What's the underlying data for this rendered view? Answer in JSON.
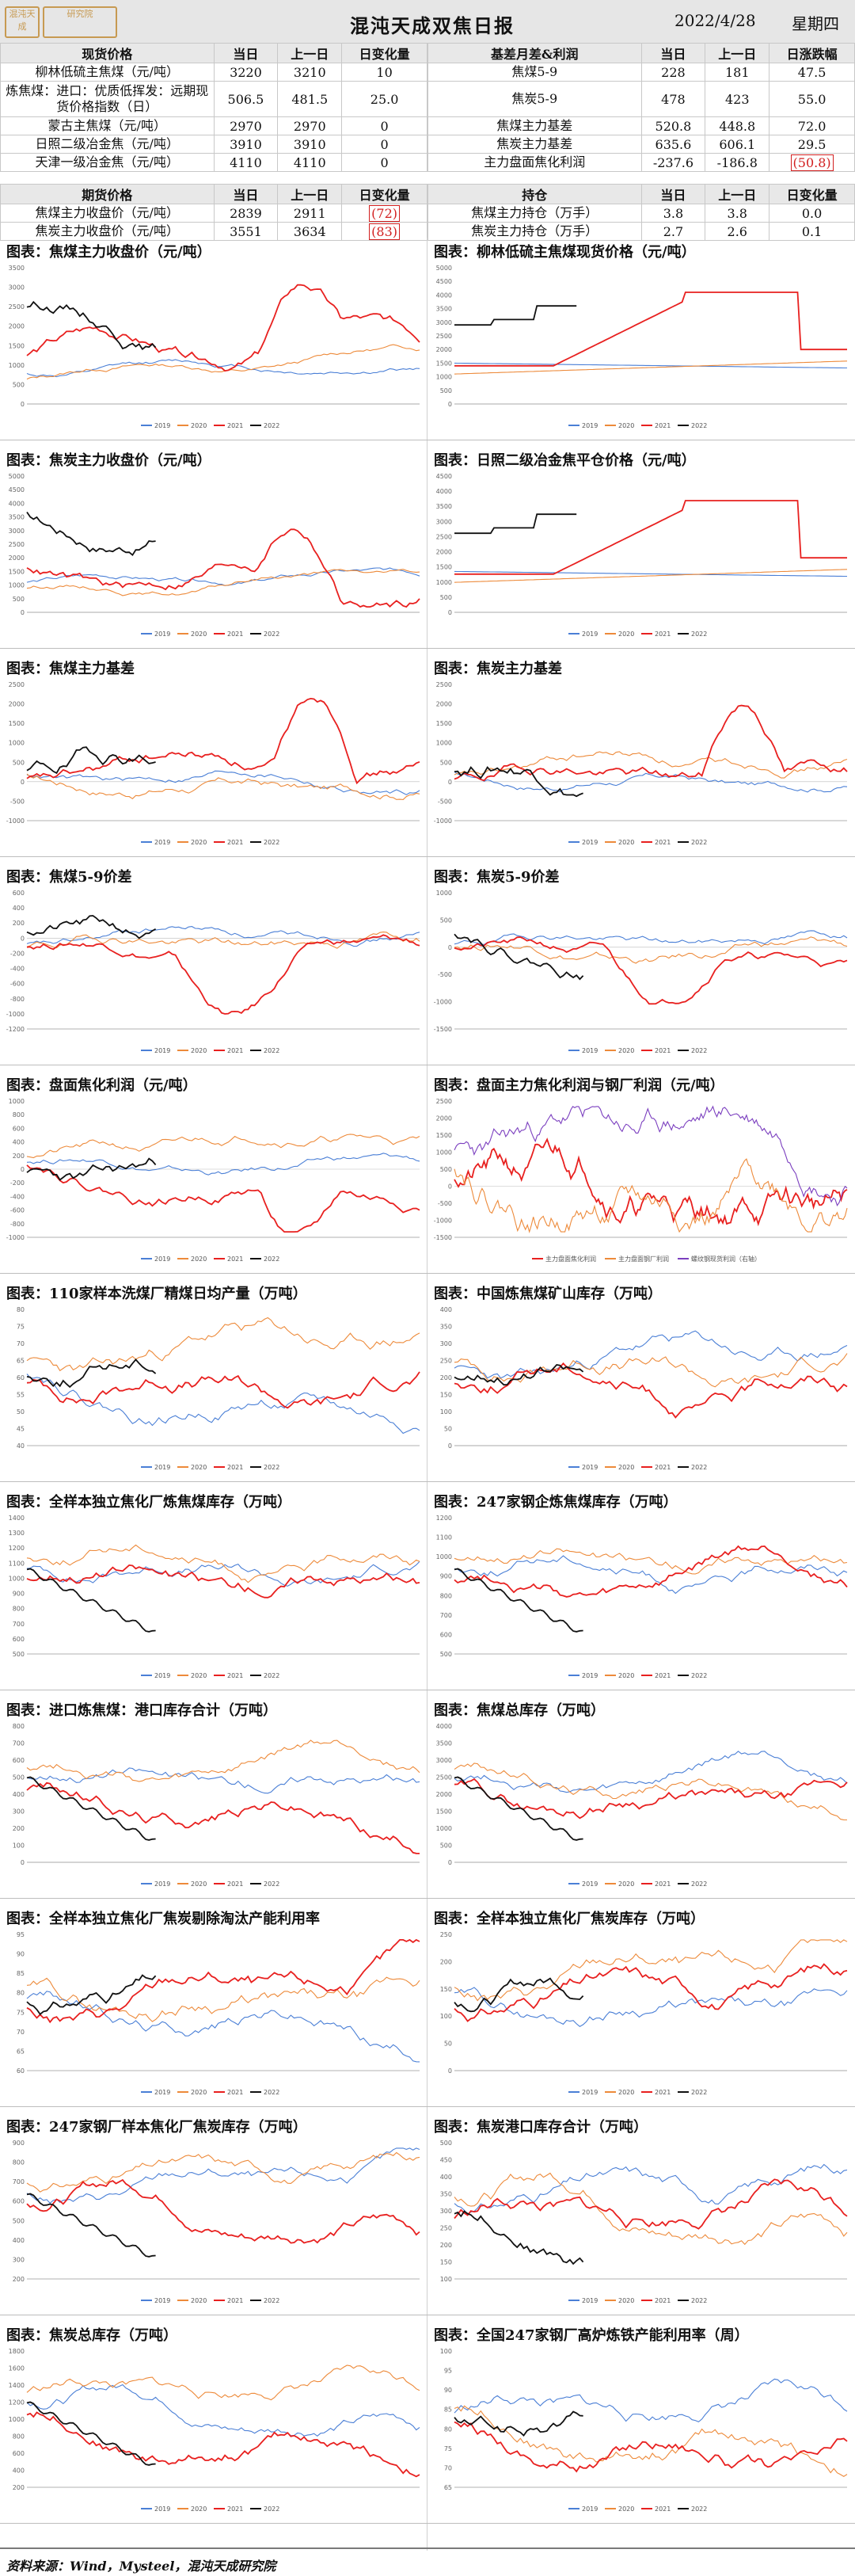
{
  "header": {
    "logo_text_1": "混沌天成",
    "logo_text_2": "研究院",
    "title": "混沌天成双焦日报",
    "date": "2022/4/28",
    "weekday": "星期四"
  },
  "spot_table": {
    "columns": [
      "现货价格",
      "当日",
      "上一日",
      "日变化量"
    ],
    "rows": [
      {
        "name": "柳林低硫主焦煤（元/吨）",
        "today": "3220",
        "prev": "3210",
        "chg": "10",
        "neg": false
      },
      {
        "name": "炼焦煤：进口：优质低挥发：远期现货价格指数（日）",
        "today": "506.5",
        "prev": "481.5",
        "chg": "25.0",
        "neg": false
      },
      {
        "name": "蒙古主焦煤（元/吨）",
        "today": "2970",
        "prev": "2970",
        "chg": "0",
        "neg": false
      },
      {
        "name": "日照二级冶金焦（元/吨）",
        "today": "3910",
        "prev": "3910",
        "chg": "0",
        "neg": false
      },
      {
        "name": "天津一级冶金焦（元/吨）",
        "today": "4110",
        "prev": "4110",
        "chg": "0",
        "neg": false
      }
    ]
  },
  "basis_table": {
    "columns": [
      "基差月差&利润",
      "当日",
      "上一日",
      "日涨跌幅"
    ],
    "rows": [
      {
        "name": "焦煤5-9",
        "today": "228",
        "prev": "181",
        "chg": "47.5",
        "neg": false
      },
      {
        "name": "焦炭5-9",
        "today": "478",
        "prev": "423",
        "chg": "55.0",
        "neg": false
      },
      {
        "name": "焦煤主力基差",
        "today": "520.8",
        "prev": "448.8",
        "chg": "72.0",
        "neg": false
      },
      {
        "name": "焦炭主力基差",
        "today": "635.6",
        "prev": "606.1",
        "chg": "29.5",
        "neg": false
      },
      {
        "name": "主力盘面焦化利润",
        "today": "-237.6",
        "prev": "-186.8",
        "chg": "(50.8)",
        "neg": true
      }
    ]
  },
  "futures_table": {
    "columns": [
      "期货价格",
      "当日",
      "上一日",
      "日变化量"
    ],
    "rows": [
      {
        "name": "焦煤主力收盘价（元/吨）",
        "today": "2839",
        "prev": "2911",
        "chg": "(72)",
        "neg": true
      },
      {
        "name": "焦炭主力收盘价（元/吨）",
        "today": "3551",
        "prev": "3634",
        "chg": "(83)",
        "neg": true
      }
    ]
  },
  "position_table": {
    "columns": [
      "持仓",
      "当日",
      "上一日",
      "日变化量"
    ],
    "rows": [
      {
        "name": "焦煤主力持仓（万手）",
        "today": "3.8",
        "prev": "3.8",
        "chg": "0.0",
        "neg": false
      },
      {
        "name": "焦炭主力持仓（万手）",
        "today": "2.7",
        "prev": "2.6",
        "chg": "0.1",
        "neg": false
      }
    ]
  },
  "colors": {
    "s2019": "#4a7fd6",
    "s2020": "#ed8a3a",
    "s2021": "#e8201f",
    "s2022": "#111111",
    "s_purple": "#7b3fbf",
    "s_gray": "#9a9a9a"
  },
  "legend_years": [
    "2019",
    "2020",
    "2021",
    "2022"
  ],
  "charts": [
    {
      "title": "图表：焦煤主力收盘价（元/吨）",
      "seed": 11,
      "profile": "spike_late",
      "ytick": [
        "3500",
        "3000",
        "2500",
        "2000",
        "1500",
        "1000",
        "500",
        "0"
      ]
    },
    {
      "title": "图表：柳林低硫主焦煤现货价格（元/吨）",
      "seed": 12,
      "profile": "step_high",
      "ytick": [
        "5000",
        "4500",
        "4000",
        "3500",
        "3000",
        "2500",
        "2000",
        "1500",
        "1000",
        "500",
        "0"
      ]
    },
    {
      "title": "图表：焦炭主力收盘价（元/吨）",
      "seed": 13,
      "profile": "rising",
      "ytick": [
        "5000",
        "4500",
        "4000",
        "3500",
        "3000",
        "2500",
        "2000",
        "1500",
        "1000",
        "500",
        "0"
      ]
    },
    {
      "title": "图表：日照二级冶金焦平仓价格（元/吨）",
      "seed": 14,
      "profile": "step_high",
      "ytick": [
        "4500",
        "4000",
        "3500",
        "3000",
        "2500",
        "2000",
        "1500",
        "1000",
        "500",
        "0"
      ]
    },
    {
      "title": "图表：焦煤主力基差",
      "seed": 15,
      "profile": "basis",
      "ytick": [
        "2500",
        "2000",
        "1500",
        "1000",
        "500",
        "0",
        "-500",
        "-1000"
      ]
    },
    {
      "title": "图表：焦炭主力基差",
      "seed": 16,
      "profile": "basis",
      "ytick": [
        "2500",
        "2000",
        "1500",
        "1000",
        "500",
        "0",
        "-500",
        "-1000"
      ]
    },
    {
      "title": "图表：焦煤5-9价差",
      "seed": 17,
      "profile": "spread",
      "ytick": [
        "600",
        "400",
        "200",
        "0",
        "-200",
        "-400",
        "-600",
        "-800",
        "-1000",
        "-1200"
      ]
    },
    {
      "title": "图表：焦炭5-9价差",
      "seed": 18,
      "profile": "spread",
      "ytick": [
        "1000",
        "500",
        "0",
        "-500",
        "-1000",
        "-1500"
      ]
    },
    {
      "title": "图表：盘面焦化利润（元/吨）",
      "seed": 19,
      "profile": "profit",
      "ytick": [
        "1000",
        "800",
        "600",
        "400",
        "200",
        "0",
        "-200",
        "-400",
        "-600",
        "-800",
        "-1000"
      ]
    },
    {
      "title": "图表：盘面主力焦化利润与钢厂利润（元/吨）",
      "seed": 20,
      "profile": "noisy",
      "ytick": [
        "2500",
        "2000",
        "1500",
        "1000",
        "500",
        "0",
        "-500",
        "-1000",
        "-1500"
      ],
      "legend": [
        "主力盘面焦化利润",
        "主力盘面钢厂利润",
        "螺纹钢现货利润（右轴）"
      ]
    },
    {
      "title": "图表：110家样本洗煤厂精煤日均产量（万吨）",
      "seed": 21,
      "profile": "wave",
      "ytick": [
        "80",
        "75",
        "70",
        "65",
        "60",
        "55",
        "50",
        "45",
        "40"
      ]
    },
    {
      "title": "图表：中国炼焦煤矿山库存（万吨）",
      "seed": 22,
      "profile": "wave",
      "ytick": [
        "400",
        "350",
        "300",
        "250",
        "200",
        "150",
        "100",
        "50",
        "0"
      ]
    },
    {
      "title": "图表：全样本独立焦化厂炼焦煤库存（万吨）",
      "seed": 23,
      "profile": "declining",
      "ytick": [
        "1400",
        "1300",
        "1200",
        "1100",
        "1000",
        "900",
        "800",
        "700",
        "600",
        "500"
      ]
    },
    {
      "title": "图表：247家钢企炼焦煤库存（万吨）",
      "seed": 24,
      "profile": "declining",
      "ytick": [
        "1200",
        "1100",
        "1000",
        "900",
        "800",
        "700",
        "600",
        "500"
      ]
    },
    {
      "title": "图表：进口炼焦煤：港口库存合计（万吨）",
      "seed": 25,
      "profile": "declining",
      "ytick": [
        "800",
        "700",
        "600",
        "500",
        "400",
        "300",
        "200",
        "100",
        "0"
      ]
    },
    {
      "title": "图表：焦煤总库存（万吨）",
      "seed": 26,
      "profile": "declining",
      "ytick": [
        "4000",
        "3500",
        "3000",
        "2500",
        "2000",
        "1500",
        "1000",
        "500",
        "0"
      ]
    },
    {
      "title": "图表：全样本独立焦化厂焦炭剔除淘汰产能利用率",
      "seed": 27,
      "profile": "wave",
      "ytick": [
        "95",
        "90",
        "85",
        "80",
        "75",
        "70",
        "65",
        "60"
      ]
    },
    {
      "title": "图表：全样本独立焦化厂焦炭库存（万吨）",
      "seed": 28,
      "profile": "wave",
      "ytick": [
        "250",
        "200",
        "150",
        "100",
        "50",
        "0"
      ]
    },
    {
      "title": "图表：247家钢厂样本焦化厂焦炭库存（万吨）",
      "seed": 29,
      "profile": "declining",
      "ytick": [
        "900",
        "800",
        "700",
        "600",
        "500",
        "400",
        "300",
        "200"
      ]
    },
    {
      "title": "图表：焦炭港口库存合计（万吨）",
      "seed": 30,
      "profile": "wave",
      "ytick": [
        "500",
        "450",
        "400",
        "350",
        "300",
        "250",
        "200",
        "150",
        "100"
      ]
    },
    {
      "title": "图表：焦炭总库存（万吨）",
      "seed": 31,
      "profile": "declining",
      "ytick": [
        "1800",
        "1600",
        "1400",
        "1200",
        "1000",
        "800",
        "600",
        "400",
        "200"
      ]
    },
    {
      "title": "图表：全国247家钢厂高炉炼铁产能利用率（周）",
      "seed": 32,
      "profile": "wave",
      "ytick": [
        "100",
        "95",
        "90",
        "85",
        "80",
        "75",
        "70",
        "65"
      ]
    }
  ],
  "footer": {
    "source": "资料来源：Wind，Mysteel，混沌天成研究院"
  }
}
